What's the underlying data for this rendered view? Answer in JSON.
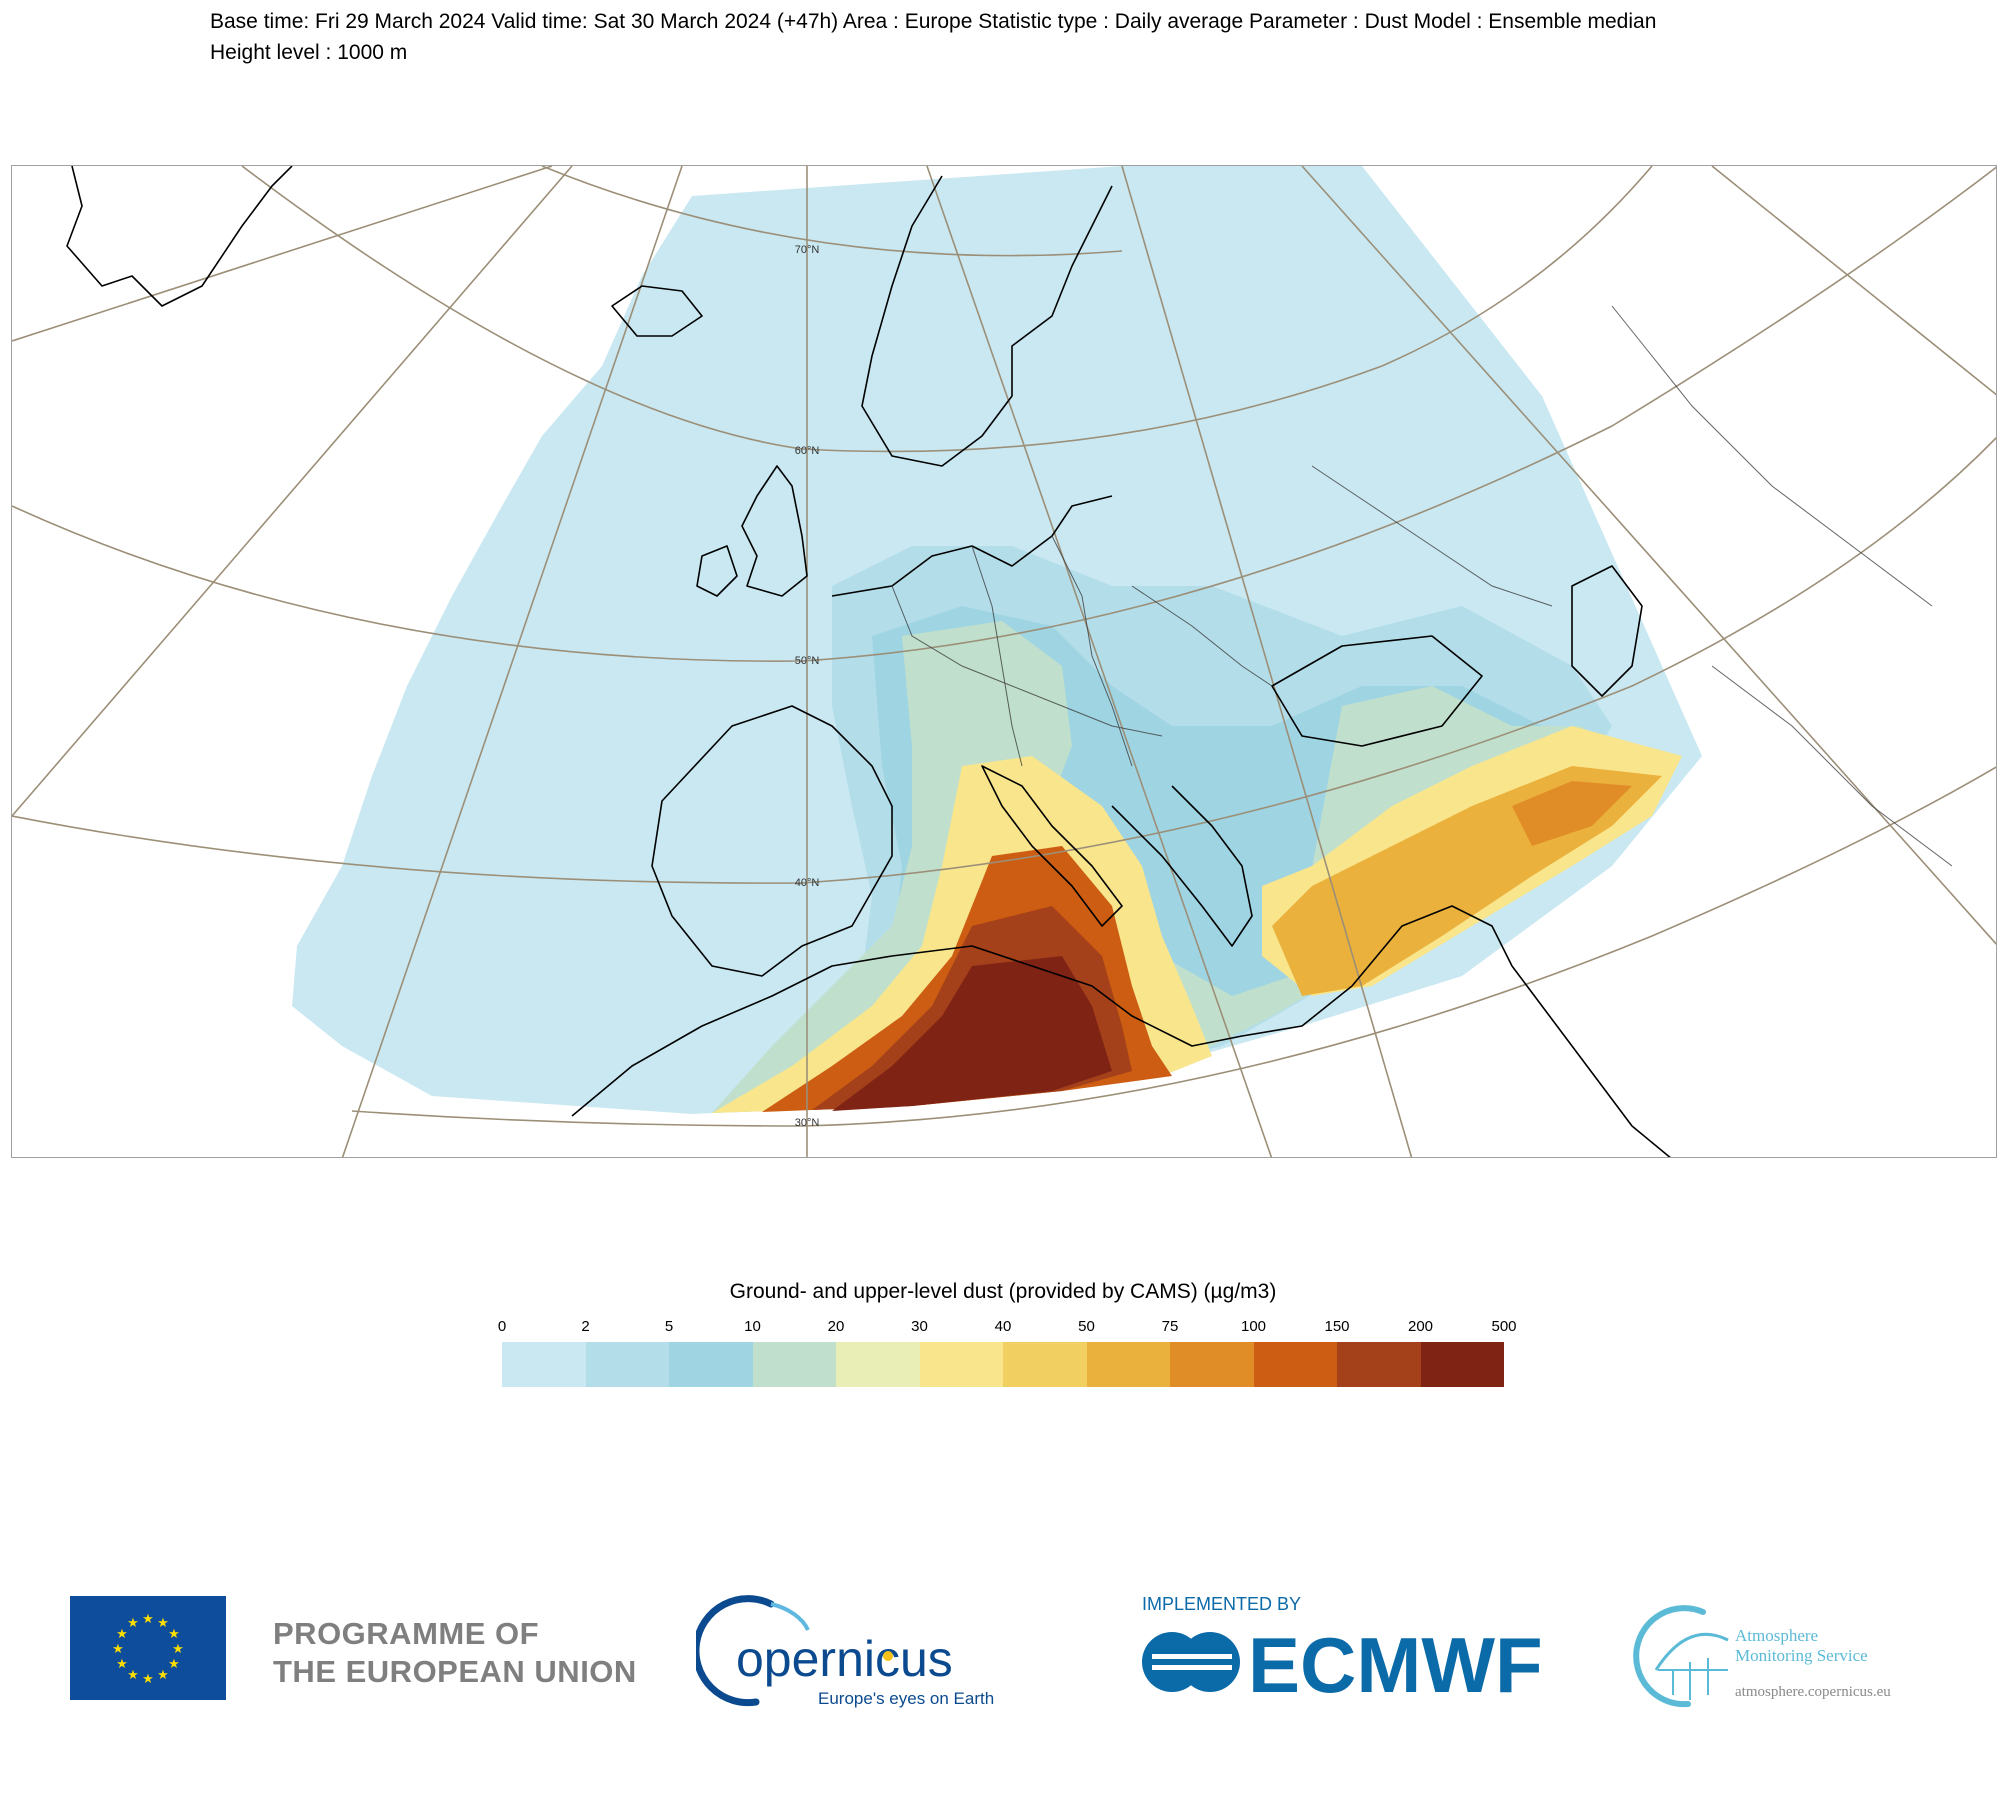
{
  "header": {
    "line1": "Base time: Fri 29 March 2024 Valid time: Sat 30 March 2024 (+47h) Area : Europe Statistic type : Daily average Parameter : Dust Model : Ensemble median",
    "line2": "Height level : 1000 m"
  },
  "map": {
    "latitude_labels": [
      "70°N",
      "60°N",
      "50°N",
      "40°N",
      "30°N"
    ],
    "colors": {
      "background": "#ffffff",
      "coastline": "#000000",
      "border": "#3c3c3c",
      "graticule": "#9c8f78"
    }
  },
  "legend": {
    "title": "Ground- and upper-level dust (provided by CAMS) (µg/m3)",
    "ticks": [
      "0",
      "2",
      "5",
      "10",
      "20",
      "30",
      "40",
      "50",
      "75",
      "100",
      "150",
      "200",
      "500"
    ],
    "colors": [
      "#c9e8f2",
      "#b3dde9",
      "#9fd4e2",
      "#c0e0cd",
      "#e8eeb5",
      "#f8e58c",
      "#f2cf61",
      "#ebb13d",
      "#e18d27",
      "#cc5d12",
      "#a5411a",
      "#7f2315"
    ]
  },
  "footer": {
    "eu_line1": "PROGRAMME OF",
    "eu_line2": "THE EUROPEAN UNION",
    "copernicus_name": "opernicus",
    "copernicus_tagline": "Europe's eyes on Earth",
    "implemented_by": "IMPLEMENTED BY",
    "ecmwf_name": "ECMWF",
    "ams_line1": "Atmosphere",
    "ams_line2": "Monitoring Service",
    "ams_url": "atmosphere.copernicus.eu",
    "colors": {
      "eu_blue": "#0e4c9c",
      "eu_star": "#ffdd00",
      "eu_text": "#7f7f7f",
      "copernicus_blue": "#0b4a8f",
      "ecmwf_blue": "#0b6aa8",
      "ams_cyan": "#5bbad6"
    }
  }
}
